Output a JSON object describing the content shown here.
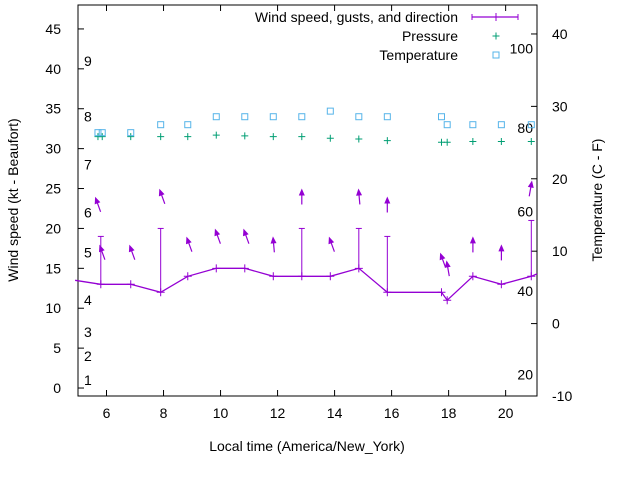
{
  "chart_data": {
    "type": "line",
    "title": "",
    "xlabel": "Local time (America/New_York)",
    "ylabel": "Wind speed (kt - Beaufort)",
    "y2label": "Temperature (C - F)",
    "xlim": [
      5,
      21.1
    ],
    "ylim": [
      -1,
      48
    ],
    "y2lim": [
      -10,
      44
    ],
    "x_ticks": [
      6,
      8,
      10,
      12,
      14,
      16,
      18,
      20
    ],
    "y_ticks": [
      0,
      5,
      10,
      15,
      20,
      25,
      30,
      35,
      40,
      45
    ],
    "y2_ticks": [
      -10,
      0,
      10,
      20,
      30,
      40
    ],
    "beaufort_labels": [
      {
        "text": "1",
        "y": 1
      },
      {
        "text": "2",
        "y": 4
      },
      {
        "text": "3",
        "y": 7
      },
      {
        "text": "4",
        "y": 11
      },
      {
        "text": "5",
        "y": 17
      },
      {
        "text": "6",
        "y": 22
      },
      {
        "text": "7",
        "y": 28
      },
      {
        "text": "8",
        "y": 34
      },
      {
        "text": "9",
        "y": 41
      }
    ],
    "fahrenheit_labels": [
      {
        "text": "20",
        "y2": -7
      },
      {
        "text": "40",
        "y2": 4.5
      },
      {
        "text": "60",
        "y2": 15.5
      },
      {
        "text": "80",
        "y2": 27
      },
      {
        "text": "100",
        "y2": 38
      }
    ],
    "legend": {
      "placement": "top-right",
      "entries": [
        {
          "label": "Wind speed, gusts, and direction",
          "symbol": "line-plus",
          "color": "#9400d3"
        },
        {
          "label": "Pressure",
          "symbol": "plus",
          "color": "#009e73"
        },
        {
          "label": "Temperature",
          "symbol": "square",
          "color": "#56b4e9"
        }
      ]
    },
    "wind_speed": {
      "name": "Wind speed, gusts, and direction",
      "color": "#9400d3",
      "x": [
        4.9,
        5.8,
        6.85,
        7.9,
        8.85,
        9.85,
        10.85,
        11.85,
        12.85,
        13.85,
        14.85,
        15.85,
        17.75,
        17.95,
        18.85,
        19.85,
        20.9,
        21.1
      ],
      "y": [
        13.5,
        13,
        13,
        12,
        14,
        15,
        15,
        14,
        14,
        14,
        15,
        12,
        12,
        11,
        14,
        13,
        14,
        14.3
      ]
    },
    "gusts": {
      "x": [
        5.8,
        7.9,
        12.85,
        14.85,
        15.85,
        20.9
      ],
      "y": [
        19,
        20,
        20,
        20,
        19,
        21
      ]
    },
    "wind_direction": {
      "x": [
        5.65,
        5.8,
        6.85,
        7.9,
        8.85,
        9.85,
        10.85,
        11.85,
        12.85,
        13.85,
        14.85,
        15.85,
        17.75,
        17.95,
        18.85,
        19.85,
        20.9
      ],
      "y": [
        23.5,
        17.5,
        17.5,
        24.5,
        18.5,
        19.5,
        19.5,
        18.5,
        24.5,
        18.5,
        24.5,
        23.5,
        16.5,
        15.5,
        18.5,
        17.5,
        25.5
      ],
      "angle_deg": [
        -20,
        -20,
        -20,
        -20,
        -20,
        -20,
        -20,
        -5,
        0,
        -20,
        -5,
        0,
        -20,
        -10,
        0,
        0,
        10
      ]
    },
    "pressure": {
      "name": "Pressure",
      "color": "#009e73",
      "x": [
        5.7,
        5.85,
        6.85,
        7.9,
        8.85,
        9.85,
        10.85,
        11.85,
        12.85,
        13.85,
        14.85,
        15.85,
        17.75,
        17.95,
        18.85,
        19.85,
        20.9
      ],
      "y": [
        31.5,
        31.5,
        31.5,
        31.5,
        31.5,
        31.7,
        31.6,
        31.5,
        31.5,
        31.3,
        31.2,
        31.0,
        30.8,
        30.8,
        30.9,
        30.9,
        30.9
      ]
    },
    "temperature": {
      "name": "Temperature",
      "color": "#56b4e9",
      "x": [
        5.7,
        5.85,
        6.85,
        7.9,
        8.85,
        9.85,
        10.85,
        11.85,
        12.85,
        13.85,
        14.85,
        15.85,
        17.75,
        17.95,
        18.85,
        19.85,
        20.9
      ],
      "y": [
        32,
        32,
        32,
        33,
        33,
        34,
        34,
        34,
        34,
        34.7,
        34,
        34,
        34,
        33,
        33,
        33,
        33
      ]
    }
  }
}
